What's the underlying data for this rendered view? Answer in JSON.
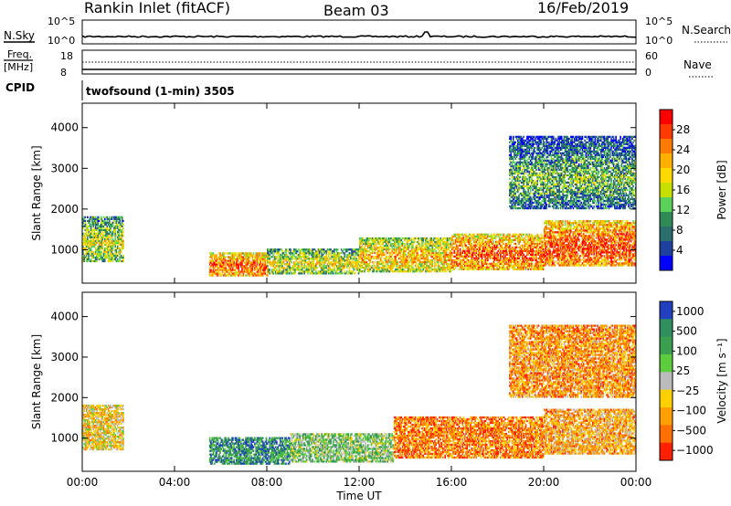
{
  "header": {
    "station": "Rankin Inlet (fitACF)",
    "beam": "Beam 03",
    "date": "16/Feb/2019"
  },
  "top_strip": {
    "nsky_label": "N.Sky",
    "nsky_ticks": [
      "10^5",
      "10^0"
    ],
    "nsearch_label": "N.Search",
    "nsearch_ticks": [
      "10^5",
      "10^0"
    ],
    "freq_label": "Freq.",
    "freq_unit": "[MHz]",
    "freq_ticks": [
      "18",
      "8"
    ],
    "nave_label": "Nave",
    "nave_ticks": [
      "60",
      "0"
    ],
    "cpid_label": "CPID",
    "cpid_text": "twofsound (1-min) 3505"
  },
  "chart_data": [
    {
      "type": "heatmap",
      "name": "power",
      "ylabel": "Slant Range [km]",
      "xlabel": "",
      "yticks": [
        1000,
        2000,
        3000,
        4000
      ],
      "ylim": [
        180,
        4600
      ],
      "xlim": [
        0,
        24
      ],
      "colorbar": {
        "label": "Power [dB]",
        "ticks": [
          "28",
          "24",
          "20",
          "16",
          "12",
          "8",
          "4"
        ],
        "colors": [
          "#ff0000",
          "#ff3a00",
          "#ff7a00",
          "#ffb000",
          "#ffd800",
          "#c8e000",
          "#5ad25a",
          "#2e8b57",
          "#2a6e6e",
          "#2040a0",
          "#0000ff"
        ]
      },
      "bands": [
        {
          "t0": 0.0,
          "t1": 1.8,
          "r0": 700,
          "r1": 1800,
          "level": 0.55
        },
        {
          "t0": 5.5,
          "t1": 8.0,
          "r0": 350,
          "r1": 900,
          "level": 0.85
        },
        {
          "t0": 8.0,
          "t1": 12.0,
          "r0": 400,
          "r1": 1000,
          "level": 0.6
        },
        {
          "t0": 12.0,
          "t1": 16.0,
          "r0": 450,
          "r1": 1300,
          "level": 0.7
        },
        {
          "t0": 16.0,
          "t1": 20.0,
          "r0": 500,
          "r1": 1400,
          "level": 0.85
        },
        {
          "t0": 20.0,
          "t1": 24.0,
          "r0": 600,
          "r1": 1700,
          "level": 0.9
        },
        {
          "t0": 18.5,
          "t1": 24.0,
          "r0": 2000,
          "r1": 3800,
          "level": 0.4
        }
      ]
    },
    {
      "type": "heatmap",
      "name": "velocity",
      "ylabel": "Slant Range [km]",
      "xlabel": "Time UT",
      "xticks": [
        "00:00",
        "04:00",
        "08:00",
        "12:00",
        "16:00",
        "20:00",
        "00:00"
      ],
      "yticks": [
        1000,
        2000,
        3000,
        4000
      ],
      "ylim": [
        180,
        4600
      ],
      "xlim": [
        0,
        24
      ],
      "colorbar": {
        "label": "Velocity [m s⁻¹]",
        "ticks": [
          "1000",
          "500",
          "100",
          "25",
          "−25",
          "−100",
          "−500",
          "−1000"
        ],
        "colors": [
          "#2040c0",
          "#2f8f5f",
          "#3aa050",
          "#5ccd3c",
          "#bbbbbb",
          "#ffd000",
          "#ffa000",
          "#ff7000",
          "#ff2000"
        ]
      },
      "bands": [
        {
          "t0": 0.0,
          "t1": 1.8,
          "r0": 700,
          "r1": 1800,
          "level": 0.6
        },
        {
          "t0": 5.5,
          "t1": 9.0,
          "r0": 350,
          "r1": 1000,
          "level": 0.2
        },
        {
          "t0": 9.0,
          "t1": 13.5,
          "r0": 400,
          "r1": 1100,
          "level": 0.4
        },
        {
          "t0": 13.5,
          "t1": 20.0,
          "r0": 500,
          "r1": 1500,
          "level": 0.8
        },
        {
          "t0": 20.0,
          "t1": 24.0,
          "r0": 600,
          "r1": 1700,
          "level": 0.7
        },
        {
          "t0": 18.5,
          "t1": 24.0,
          "r0": 2000,
          "r1": 3800,
          "level": 0.75
        }
      ]
    }
  ]
}
